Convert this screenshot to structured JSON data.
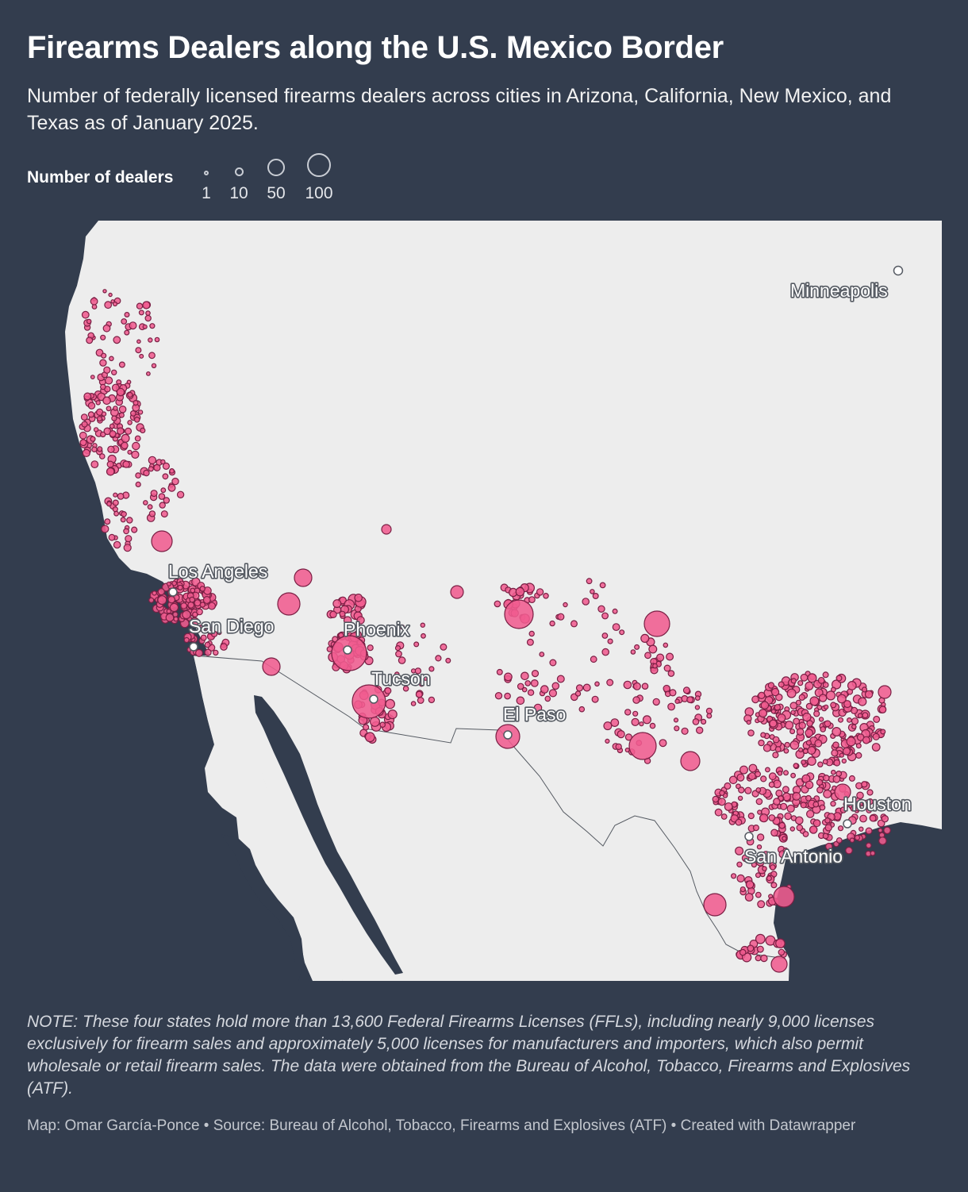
{
  "header": {
    "title": "Firearms Dealers along the U.S. Mexico Border",
    "subtitle": "Number of federally licensed firearms dealers across cities in Arizona, California, New Mexico, and Texas as of January 2025."
  },
  "legend": {
    "title": "Number of dealers",
    "items": [
      {
        "label": "1",
        "value": 1
      },
      {
        "label": "10",
        "value": 10
      },
      {
        "label": "50",
        "value": 50
      },
      {
        "label": "100",
        "value": 100
      }
    ]
  },
  "map": {
    "land_color": "#ededed",
    "water_color": "#333d4e",
    "marker_fill": "#f05c8f",
    "marker_stroke": "#7a1f44",
    "cities": [
      {
        "name": "Los Angeles"
      },
      {
        "name": "San Diego"
      },
      {
        "name": "Phoenix"
      },
      {
        "name": "Tucson"
      },
      {
        "name": "El Paso"
      },
      {
        "name": "Houston"
      },
      {
        "name": "San Antonio"
      },
      {
        "name": "Minneapolis"
      }
    ]
  },
  "note": "NOTE: These four states hold more than 13,600 Federal Firearms Licenses (FFLs), including nearly 9,000 licenses exclusively for firearm sales and approximately 5,000 licenses for manufacturers and importers, which also permit wholesale or retail firearm sales. The data were obtained from the Bureau of Alcohol, Tobacco, Firearms and Explosives (ATF).",
  "footer": "Map: Omar García-Ponce • Source: Bureau of Alcohol, Tobacco, Firearms and Explosives (ATF) • Created with Datawrapper"
}
